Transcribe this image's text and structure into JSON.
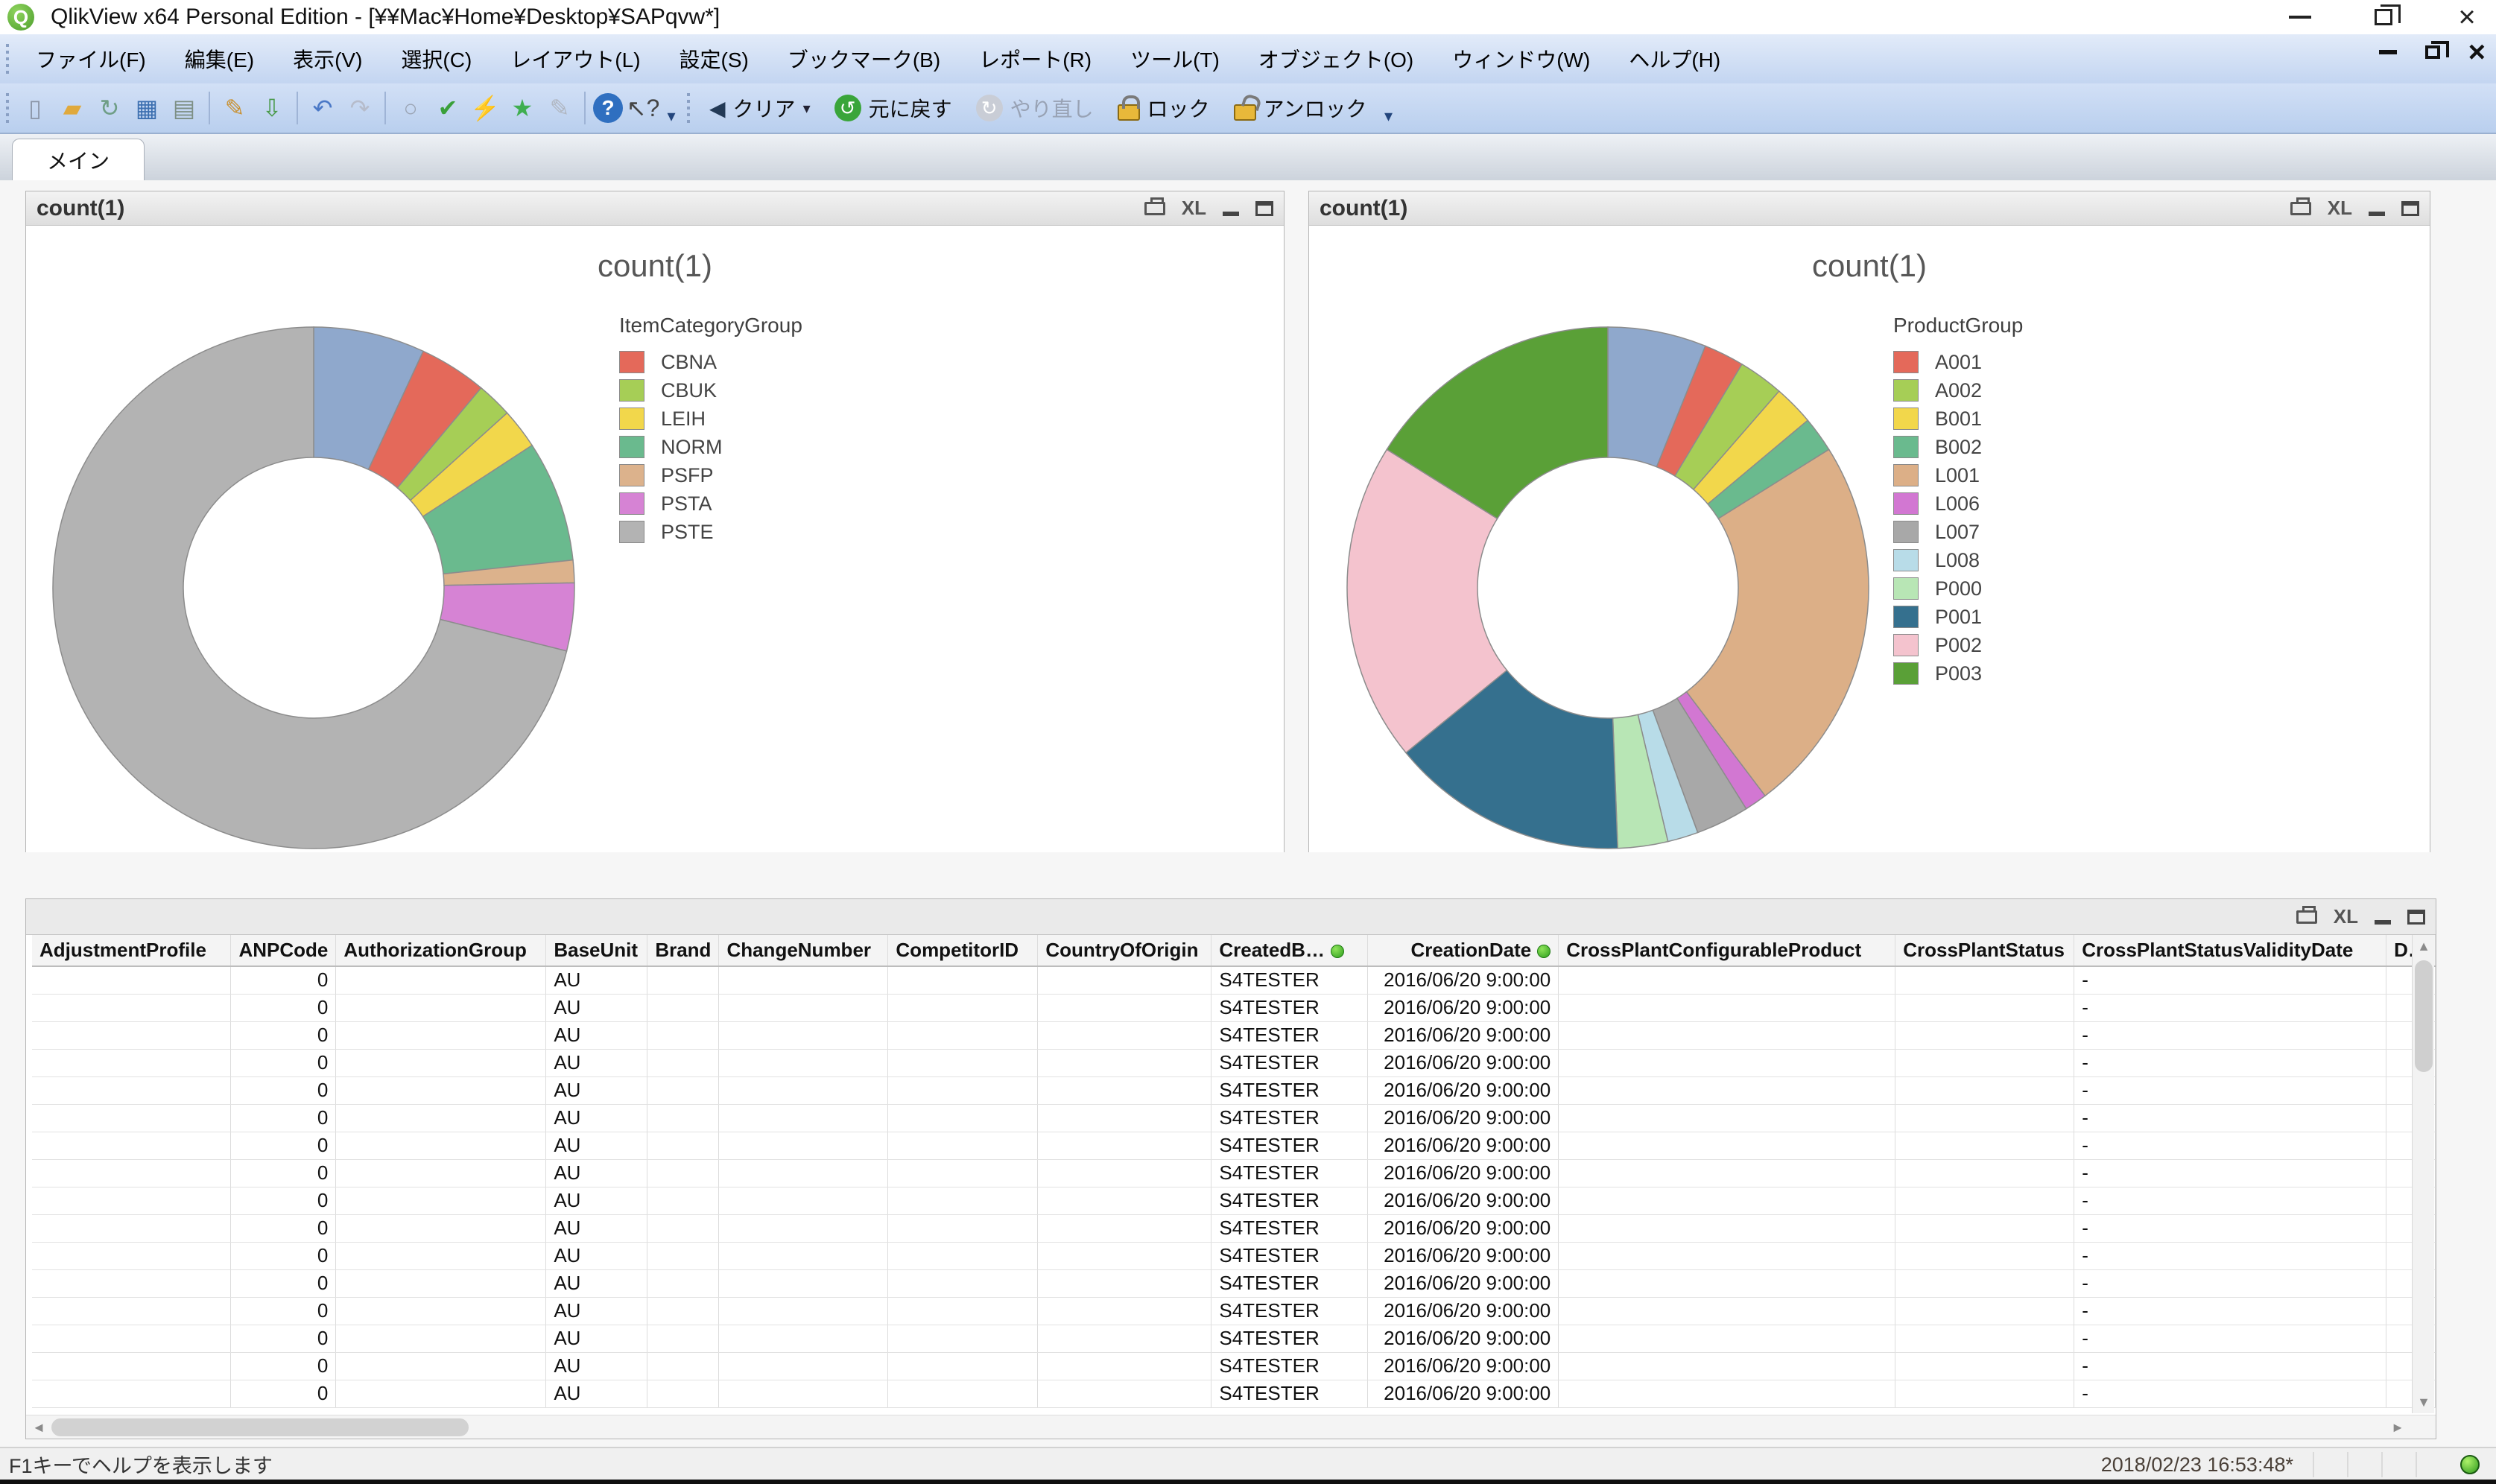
{
  "window": {
    "title": "QlikView x64 Personal Edition - [¥¥Mac¥Home¥Desktop¥SAPqvw*]",
    "app_icon_letter": "Q"
  },
  "menubar": {
    "items": [
      "ファイル(F)",
      "編集(E)",
      "表示(V)",
      "選択(C)",
      "レイアウト(L)",
      "設定(S)",
      "ブックマーク(B)",
      "レポート(R)",
      "ツール(T)",
      "オブジェクト(O)",
      "ウィンドウ(W)",
      "ヘルプ(H)"
    ]
  },
  "toolbar": {
    "icon_buttons": [
      {
        "name": "new-document-icon",
        "glyph": "▯",
        "fg": "#8a94a6"
      },
      {
        "name": "open-folder-icon",
        "glyph": "▰",
        "fg": "#e0a93c"
      },
      {
        "name": "reload-icon",
        "glyph": "↻",
        "fg": "#6f9e86"
      },
      {
        "name": "save-icon",
        "glyph": "▦",
        "fg": "#3c6fb0"
      },
      {
        "name": "print-icon",
        "glyph": "▤",
        "fg": "#7d8f84",
        "sep_after": true
      },
      {
        "name": "edit-script-icon",
        "glyph": "✎",
        "fg": "#c89030"
      },
      {
        "name": "export-icon",
        "glyph": "⇩",
        "fg": "#4a9a4a",
        "sep_after": true
      },
      {
        "name": "undo-layout-icon",
        "glyph": "↶",
        "fg": "#4a78c6"
      },
      {
        "name": "redo-layout-icon",
        "glyph": "↷",
        "fg": "#b6bccb",
        "sep_after": true
      },
      {
        "name": "zoom-icon",
        "glyph": "○",
        "fg": "#9aa4b4"
      },
      {
        "name": "select-check-icon",
        "glyph": "✔",
        "fg": "#3aa03a"
      },
      {
        "name": "quick-chart-icon",
        "glyph": "⚡",
        "fg": "#d99a00"
      },
      {
        "name": "favorites-star-icon",
        "glyph": "★",
        "fg": "#3fae4f"
      },
      {
        "name": "design-notes-icon",
        "glyph": "✎",
        "fg": "#b0b6c0",
        "sep_after": true
      },
      {
        "name": "help-icon",
        "glyph": "?",
        "fg": "#ffffff",
        "bg": "#2f6fc0",
        "round": true
      },
      {
        "name": "context-help-icon",
        "glyph": "↖?",
        "fg": "#444444"
      }
    ],
    "text_buttons": [
      {
        "name": "clear-button",
        "label": "クリア",
        "lead": "◀",
        "lead_bg": "",
        "lead_fg": "#233a56",
        "dropdown": true,
        "enabled": true
      },
      {
        "name": "undo-selection-button",
        "label": "元に戻す",
        "lead": "↺",
        "lead_bg": "#3aa53a",
        "lead_fg": "#ffffff",
        "dropdown": false,
        "enabled": true
      },
      {
        "name": "redo-selection-button",
        "label": "やり直し",
        "lead": "↻",
        "lead_bg": "#c9cdd6",
        "lead_fg": "#ffffff",
        "dropdown": false,
        "enabled": false
      },
      {
        "name": "lock-button",
        "label": "ロック",
        "lead_class": "ico-lock",
        "dropdown": false,
        "enabled": true
      },
      {
        "name": "unlock-button",
        "label": "アンロック",
        "lead_class": "ico-unlock",
        "dropdown": false,
        "enabled": true
      }
    ]
  },
  "tabs": {
    "active": "メイン"
  },
  "caption_icons": {
    "xl_label": "XL"
  },
  "charts": [
    {
      "caption": "count(1)",
      "title": "count(1)",
      "chart_data": {
        "type": "pie",
        "subtype": "donut",
        "title": "count(1)",
        "legend_title": "ItemCategoryGroup",
        "legend_position": "right",
        "categories": [
          "-",
          "CBNA",
          "CBUK",
          "LEIH",
          "NORM",
          "PSFP",
          "PSTA",
          "PSTE"
        ],
        "values_percent": [
          6.9,
          4.2,
          2.2,
          2.5,
          7.5,
          1.4,
          4.2,
          71.1
        ],
        "colors": [
          "#8FA8CC",
          "#E4695A",
          "#A6CE56",
          "#F2D74B",
          "#6ABA8E",
          "#DCB28C",
          "#D683D4",
          "#B3B3B3"
        ],
        "legend": [
          "CBNA",
          "CBUK",
          "LEIH",
          "NORM",
          "PSFP",
          "PSTA",
          "PSTE"
        ]
      }
    },
    {
      "caption": "count(1)",
      "title": "count(1)",
      "chart_data": {
        "type": "pie",
        "subtype": "donut",
        "title": "count(1)",
        "legend_title": "ProductGroup",
        "legend_position": "right",
        "categories": [
          "-",
          "A001",
          "A002",
          "B001",
          "B002",
          "L001",
          "L006",
          "L007",
          "L008",
          "P000",
          "P001",
          "P002",
          "P003"
        ],
        "values_percent": [
          6.1,
          2.5,
          2.8,
          2.5,
          2.2,
          23.6,
          1.4,
          3.3,
          1.9,
          3.1,
          14.7,
          19.8,
          16.1
        ],
        "colors": [
          "#8FA8CC",
          "#E4695A",
          "#A6CE56",
          "#F2D74B",
          "#6ABA8E",
          "#DCAF87",
          "#D277D2",
          "#A8A8A8",
          "#B8DCE8",
          "#B8E6B5",
          "#35708E",
          "#F4C3CE",
          "#5AA037"
        ],
        "legend": [
          "A001",
          "A002",
          "B001",
          "B002",
          "L001",
          "L006",
          "L007",
          "L008",
          "P000",
          "P001",
          "P002",
          "P003"
        ]
      }
    }
  ],
  "table": {
    "columns": [
      {
        "label": "AdjustmentProfile",
        "align": "left"
      },
      {
        "label": "ANPCode",
        "align": "right"
      },
      {
        "label": "AuthorizationGroup",
        "align": "left"
      },
      {
        "label": "BaseUnit",
        "align": "left"
      },
      {
        "label": "Brand",
        "align": "left"
      },
      {
        "label": "ChangeNumber",
        "align": "left"
      },
      {
        "label": "CompetitorID",
        "align": "left"
      },
      {
        "label": "CountryOfOrigin",
        "align": "left"
      },
      {
        "label": "CreatedB…",
        "align": "left",
        "indicator": true
      },
      {
        "label": "CreationDate",
        "align": "right",
        "indicator": true
      },
      {
        "label": "CrossPlantConfigurableProduct",
        "align": "left"
      },
      {
        "label": "CrossPlantStatus",
        "align": "left"
      },
      {
        "label": "CrossPlantStatusValidityDate",
        "align": "left"
      },
      {
        "label": "D…",
        "align": "left"
      }
    ],
    "rows": [
      [
        "",
        "0",
        "",
        "AU",
        "",
        "",
        "",
        "",
        "S4TESTER",
        "2016/06/20 9:00:00",
        "",
        "",
        "-",
        ""
      ],
      [
        "",
        "0",
        "",
        "AU",
        "",
        "",
        "",
        "",
        "S4TESTER",
        "2016/06/20 9:00:00",
        "",
        "",
        "-",
        ""
      ],
      [
        "",
        "0",
        "",
        "AU",
        "",
        "",
        "",
        "",
        "S4TESTER",
        "2016/06/20 9:00:00",
        "",
        "",
        "-",
        ""
      ],
      [
        "",
        "0",
        "",
        "AU",
        "",
        "",
        "",
        "",
        "S4TESTER",
        "2016/06/20 9:00:00",
        "",
        "",
        "-",
        ""
      ],
      [
        "",
        "0",
        "",
        "AU",
        "",
        "",
        "",
        "",
        "S4TESTER",
        "2016/06/20 9:00:00",
        "",
        "",
        "-",
        ""
      ],
      [
        "",
        "0",
        "",
        "AU",
        "",
        "",
        "",
        "",
        "S4TESTER",
        "2016/06/20 9:00:00",
        "",
        "",
        "-",
        ""
      ],
      [
        "",
        "0",
        "",
        "AU",
        "",
        "",
        "",
        "",
        "S4TESTER",
        "2016/06/20 9:00:00",
        "",
        "",
        "-",
        ""
      ],
      [
        "",
        "0",
        "",
        "AU",
        "",
        "",
        "",
        "",
        "S4TESTER",
        "2016/06/20 9:00:00",
        "",
        "",
        "-",
        ""
      ],
      [
        "",
        "0",
        "",
        "AU",
        "",
        "",
        "",
        "",
        "S4TESTER",
        "2016/06/20 9:00:00",
        "",
        "",
        "-",
        ""
      ],
      [
        "",
        "0",
        "",
        "AU",
        "",
        "",
        "",
        "",
        "S4TESTER",
        "2016/06/20 9:00:00",
        "",
        "",
        "-",
        ""
      ],
      [
        "",
        "0",
        "",
        "AU",
        "",
        "",
        "",
        "",
        "S4TESTER",
        "2016/06/20 9:00:00",
        "",
        "",
        "-",
        ""
      ],
      [
        "",
        "0",
        "",
        "AU",
        "",
        "",
        "",
        "",
        "S4TESTER",
        "2016/06/20 9:00:00",
        "",
        "",
        "-",
        ""
      ],
      [
        "",
        "0",
        "",
        "AU",
        "",
        "",
        "",
        "",
        "S4TESTER",
        "2016/06/20 9:00:00",
        "",
        "",
        "-",
        ""
      ],
      [
        "",
        "0",
        "",
        "AU",
        "",
        "",
        "",
        "",
        "S4TESTER",
        "2016/06/20 9:00:00",
        "",
        "",
        "-",
        ""
      ],
      [
        "",
        "0",
        "",
        "AU",
        "",
        "",
        "",
        "",
        "S4TESTER",
        "2016/06/20 9:00:00",
        "",
        "",
        "-",
        ""
      ],
      [
        "",
        "0",
        "",
        "AU",
        "",
        "",
        "",
        "",
        "S4TESTER",
        "2016/06/20 9:00:00",
        "",
        "",
        "-",
        ""
      ]
    ]
  },
  "statusbar": {
    "help_text": "F1キーでヘルプを表示します",
    "timestamp": "2018/02/23 16:53:48*"
  }
}
